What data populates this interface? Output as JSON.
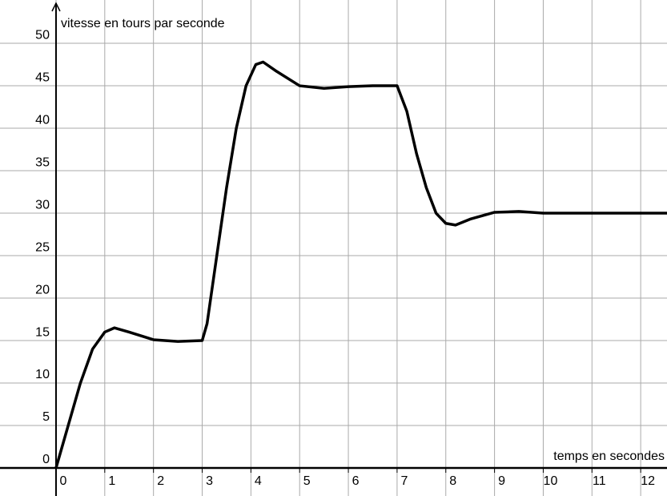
{
  "chart_data": {
    "type": "line",
    "y_label": "vitesse en tours par seconde",
    "x_label": "temps en secondes",
    "x": [
      0,
      0.25,
      0.5,
      0.75,
      1,
      1.2,
      1.5,
      2,
      2.5,
      3,
      3.1,
      3.3,
      3.5,
      3.7,
      3.9,
      4.1,
      4.25,
      4.5,
      5,
      5.5,
      6,
      6.5,
      7,
      7.2,
      7.4,
      7.6,
      7.8,
      8,
      8.2,
      8.5,
      9,
      9.5,
      10,
      11,
      12,
      12.54
    ],
    "series": [
      {
        "color": "#000000",
        "values": [
          0,
          5,
          10,
          14,
          16,
          16.5,
          16,
          15.1,
          14.9,
          15,
          17,
          25,
          33,
          40,
          45,
          47.5,
          47.8,
          46.8,
          45,
          44.7,
          44.9,
          45,
          45,
          42,
          37,
          33,
          30,
          28.8,
          28.6,
          29.3,
          30.1,
          30.2,
          30,
          30,
          30,
          30
        ]
      }
    ],
    "xlim": [
      -1.15,
      12.54
    ],
    "ylim": [
      -3.3,
      55.1
    ],
    "xticks": [
      0,
      1,
      2,
      3,
      4,
      5,
      6,
      7,
      8,
      9,
      10,
      11,
      12
    ],
    "yticks": [
      0,
      5,
      10,
      15,
      20,
      25,
      30,
      35,
      40,
      45,
      50
    ],
    "grid": true
  }
}
